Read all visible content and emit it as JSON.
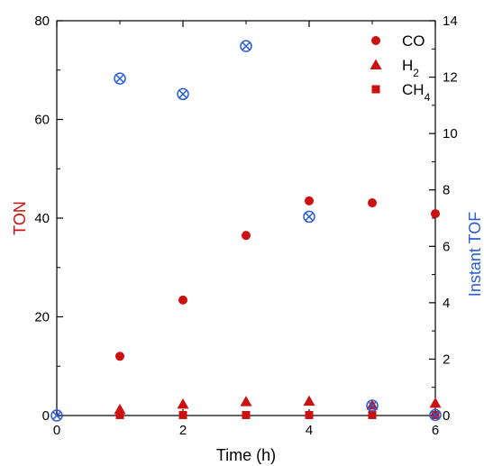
{
  "chart_data": {
    "type": "scatter",
    "xlabel": "Time (h)",
    "ylabel": "TON",
    "y2label": "Instant TOF",
    "xlim": [
      0,
      6
    ],
    "ylim": [
      0,
      80
    ],
    "y2lim": [
      0,
      14
    ],
    "xticks": [
      0,
      2,
      4,
      6
    ],
    "yticks": [
      0,
      20,
      40,
      60,
      80
    ],
    "y2ticks": [
      0,
      2,
      4,
      6,
      8,
      10,
      12,
      14
    ],
    "grid": false,
    "legend_position": "top-right",
    "colors": {
      "red": "#cc1111",
      "blue": "#2a5fd6"
    },
    "series": [
      {
        "name": "CO",
        "legend_html": "CO",
        "axis": "left",
        "marker": "circle",
        "color": "#cc1111",
        "x": [
          1,
          2,
          3,
          4,
          5,
          6
        ],
        "y": [
          12.0,
          23.4,
          36.5,
          43.5,
          43.1,
          40.9
        ]
      },
      {
        "name": "H2",
        "legend_html": "H<tspan baseline-shift='sub' font-size='12'>2</tspan>",
        "axis": "left",
        "marker": "triangle",
        "color": "#cc1111",
        "x": [
          1,
          2,
          3,
          4,
          5,
          6
        ],
        "y": [
          1.2,
          2.3,
          2.8,
          2.9,
          2.1,
          2.5
        ]
      },
      {
        "name": "CH4",
        "legend_html": "CH<tspan baseline-shift='sub' font-size='12'>4</tspan>",
        "axis": "left",
        "marker": "square",
        "color": "#cc1111",
        "x": [
          1,
          2,
          3,
          4,
          5,
          6
        ],
        "y": [
          0.1,
          0.1,
          0.1,
          0.1,
          0.1,
          0.1
        ]
      },
      {
        "name": "Instant TOF",
        "axis": "right",
        "marker": "circle-x",
        "color": "#2a5fd6",
        "x": [
          0,
          1,
          2,
          3,
          4,
          5,
          6
        ],
        "y": [
          0.0,
          11.95,
          11.4,
          13.1,
          7.05,
          0.35,
          0.02
        ]
      }
    ]
  }
}
